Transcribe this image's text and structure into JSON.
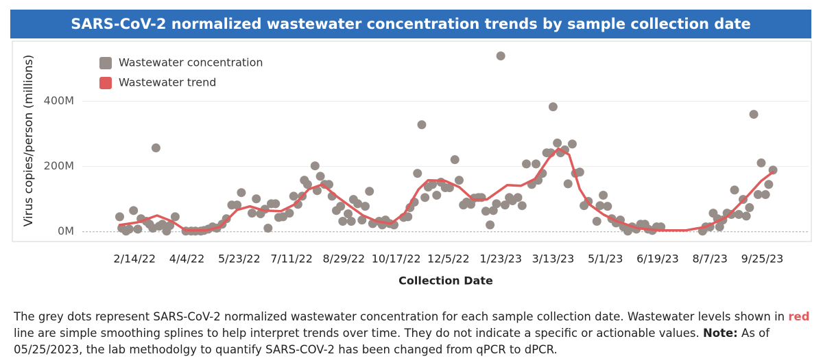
{
  "chart_data": {
    "type": "scatter",
    "title": "SARS-CoV-2 normalized wastewater concentration trends by sample collection date",
    "ylabel": "Virus copies/person (millions)",
    "xlabel": "Collection Date",
    "xlim": [
      "2021-12-27",
      "2023-11-08"
    ],
    "xticks": [
      {
        "value": "2022-02-14",
        "label": "2/14/22"
      },
      {
        "value": "2022-04-04",
        "label": "4/4/22"
      },
      {
        "value": "2022-05-23",
        "label": "5/23/22"
      },
      {
        "value": "2022-07-11",
        "label": "7/11/22"
      },
      {
        "value": "2022-08-29",
        "label": "8/29/22"
      },
      {
        "value": "2022-10-17",
        "label": "10/17/22"
      },
      {
        "value": "2022-12-05",
        "label": "12/5/22"
      },
      {
        "value": "2023-01-23",
        "label": "1/23/23"
      },
      {
        "value": "2023-03-13",
        "label": "3/13/23"
      },
      {
        "value": "2023-05-01",
        "label": "5/1/23"
      },
      {
        "value": "2023-06-19",
        "label": "6/19/23"
      },
      {
        "value": "2023-08-07",
        "label": "8/7/23"
      },
      {
        "value": "2023-09-25",
        "label": "9/25/23"
      }
    ],
    "ylim": [
      -30,
      580
    ],
    "yticks": [
      {
        "value": 0,
        "label": "0M"
      },
      {
        "value": 200,
        "label": "200M"
      },
      {
        "value": 400,
        "label": "400M"
      }
    ],
    "grid": true,
    "legend": "top-left",
    "series": [
      {
        "name": "Wastewater concentration",
        "type": "scatter",
        "color": "#978e89",
        "x": [
          "2022-01-31",
          "2022-02-02",
          "2022-02-06",
          "2022-02-09",
          "2022-02-13",
          "2022-02-17",
          "2022-02-20",
          "2022-02-25",
          "2022-02-28",
          "2022-03-03",
          "2022-03-06",
          "2022-03-09",
          "2022-03-12",
          "2022-03-16",
          "2022-03-19",
          "2022-03-24",
          "2022-04-03",
          "2022-04-08",
          "2022-04-12",
          "2022-04-17",
          "2022-04-20",
          "2022-04-24",
          "2022-04-28",
          "2022-05-02",
          "2022-05-07",
          "2022-05-11",
          "2022-05-16",
          "2022-05-21",
          "2022-05-25",
          "2022-06-04",
          "2022-06-08",
          "2022-06-12",
          "2022-06-16",
          "2022-06-19",
          "2022-06-22",
          "2022-06-26",
          "2022-06-29",
          "2022-07-03",
          "2022-07-09",
          "2022-07-13",
          "2022-07-17",
          "2022-07-21",
          "2022-07-23",
          "2022-07-26",
          "2022-08-02",
          "2022-08-04",
          "2022-08-07",
          "2022-08-11",
          "2022-08-15",
          "2022-08-18",
          "2022-08-22",
          "2022-08-26",
          "2022-08-28",
          "2022-09-02",
          "2022-09-05",
          "2022-09-07",
          "2022-09-11",
          "2022-09-15",
          "2022-09-18",
          "2022-09-22",
          "2022-09-25",
          "2022-10-01",
          "2022-10-04",
          "2022-10-07",
          "2022-10-11",
          "2022-10-15",
          "2022-10-24",
          "2022-10-28",
          "2022-10-30",
          "2022-11-03",
          "2022-11-06",
          "2022-11-10",
          "2022-11-13",
          "2022-11-16",
          "2022-11-20",
          "2022-11-24",
          "2022-11-28",
          "2022-12-02",
          "2022-12-06",
          "2022-12-11",
          "2022-12-15",
          "2022-12-19",
          "2022-12-22",
          "2022-12-26",
          "2022-12-29",
          "2023-01-02",
          "2023-01-05",
          "2023-01-09",
          "2023-01-13",
          "2023-01-16",
          "2023-01-19",
          "2023-01-23",
          "2023-01-27",
          "2023-01-31",
          "2023-02-03",
          "2023-02-08",
          "2023-02-12",
          "2023-02-16",
          "2023-02-21",
          "2023-02-25",
          "2023-02-27",
          "2023-03-03",
          "2023-03-07",
          "2023-03-11",
          "2023-03-13",
          "2023-03-17",
          "2023-03-20",
          "2023-03-24",
          "2023-03-27",
          "2023-03-31",
          "2023-04-03",
          "2023-04-07",
          "2023-04-11",
          "2023-04-15",
          "2023-04-23",
          "2023-04-26",
          "2023-04-29",
          "2023-05-03",
          "2023-05-07",
          "2023-05-11",
          "2023-05-15",
          "2023-05-18",
          "2023-05-22",
          "2023-05-26",
          "2023-05-30",
          "2023-06-03",
          "2023-06-07",
          "2023-06-10",
          "2023-06-14",
          "2023-06-18",
          "2023-06-22",
          "2023-07-31",
          "2023-08-03",
          "2023-08-07",
          "2023-08-10",
          "2023-08-14",
          "2023-08-16",
          "2023-08-19",
          "2023-08-23",
          "2023-08-27",
          "2023-08-30",
          "2023-09-03",
          "2023-09-07",
          "2023-09-10",
          "2023-09-13",
          "2023-09-17",
          "2023-09-21",
          "2023-09-24",
          "2023-09-28",
          "2023-10-01",
          "2023-10-05"
        ],
        "values": [
          46,
          11,
          2,
          8,
          65,
          8,
          40,
          32,
          23,
          11,
          257,
          17,
          23,
          2,
          19,
          46,
          2,
          2,
          2,
          2,
          4,
          8,
          15,
          11,
          23,
          40,
          82,
          82,
          120,
          57,
          101,
          55,
          69,
          11,
          86,
          86,
          44,
          46,
          57,
          109,
          84,
          109,
          158,
          145,
          202,
          126,
          170,
          145,
          145,
          109,
          65,
          78,
          32,
          55,
          32,
          99,
          86,
          36,
          78,
          124,
          25,
          32,
          21,
          36,
          25,
          21,
          44,
          46,
          74,
          91,
          179,
          328,
          105,
          137,
          145,
          112,
          152,
          135,
          135,
          221,
          158,
          82,
          91,
          84,
          103,
          105,
          105,
          63,
          21,
          65,
          86,
          539,
          82,
          105,
          95,
          105,
          80,
          208,
          145,
          208,
          158,
          179,
          242,
          242,
          383,
          272,
          242,
          251,
          147,
          269,
          179,
          183,
          80,
          93,
          32,
          80,
          112,
          78,
          40,
          27,
          36,
          15,
          2,
          15,
          8,
          23,
          23,
          8,
          4,
          15,
          15,
          2,
          15,
          15,
          57,
          40,
          15,
          36,
          57,
          53,
          128,
          53,
          99,
          48,
          74,
          360,
          114,
          211,
          114,
          145,
          189
        ]
      },
      {
        "name": "Wastewater trend",
        "type": "line",
        "color": "#e05c5c",
        "x": [
          "2022-01-31",
          "2022-02-17",
          "2022-03-07",
          "2022-03-21",
          "2022-04-03",
          "2022-04-22",
          "2022-05-05",
          "2022-05-21",
          "2022-06-02",
          "2022-06-15",
          "2022-07-01",
          "2022-07-14",
          "2022-07-27",
          "2022-08-09",
          "2022-08-22",
          "2022-09-04",
          "2022-09-16",
          "2022-09-29",
          "2022-10-12",
          "2022-10-25",
          "2022-11-07",
          "2022-11-16",
          "2022-12-02",
          "2022-12-15",
          "2022-12-28",
          "2023-01-10",
          "2023-01-29",
          "2023-02-11",
          "2023-02-24",
          "2023-03-09",
          "2023-03-18",
          "2023-03-28",
          "2023-04-07",
          "2023-04-16",
          "2023-04-29",
          "2023-05-12",
          "2023-05-31",
          "2023-06-20",
          "2023-07-15",
          "2023-08-03",
          "2023-08-23",
          "2023-09-11",
          "2023-09-24",
          "2023-10-05"
        ],
        "values": [
          21,
          29,
          50,
          32,
          4,
          4,
          15,
          67,
          78,
          65,
          63,
          84,
          130,
          145,
          109,
          78,
          50,
          32,
          25,
          57,
          130,
          158,
          156,
          137,
          99,
          99,
          143,
          141,
          162,
          225,
          255,
          236,
          131,
          84,
          53,
          32,
          11,
          4,
          4,
          15,
          46,
          109,
          156,
          183
        ]
      }
    ],
    "note": [
      "The grey dots represent  SARS-CoV-2 normalized wastewater concentration for each sample collection date. Wastewater levels shown in ",
      "red",
      " line are simple smoothing splines to help interpret trends over time. They do not indicate a specific or actionable values. ",
      "Note:",
      " As of 05/25/2023, the lab methodolgy to quantify SARS-COV-2 has been changed from qPCR to dPCR."
    ]
  }
}
